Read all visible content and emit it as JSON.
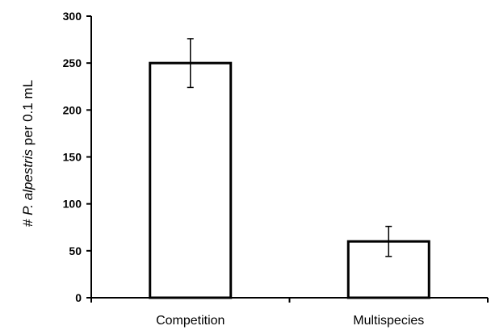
{
  "chart_data": {
    "type": "bar",
    "categories": [
      "Competition",
      "Multispecies"
    ],
    "values": [
      250,
      60
    ],
    "errors": [
      26,
      16
    ],
    "ylabel": {
      "prefix": "# ",
      "italic": "P. alpestris",
      "suffix": " per 0.1 mL"
    },
    "xlabel": "",
    "ylim": [
      0,
      300
    ],
    "yticks": [
      0,
      50,
      100,
      150,
      200,
      250,
      300
    ],
    "grid": false,
    "legend": "none",
    "bar_fill": "#ffffff",
    "bar_stroke": "#000000"
  }
}
